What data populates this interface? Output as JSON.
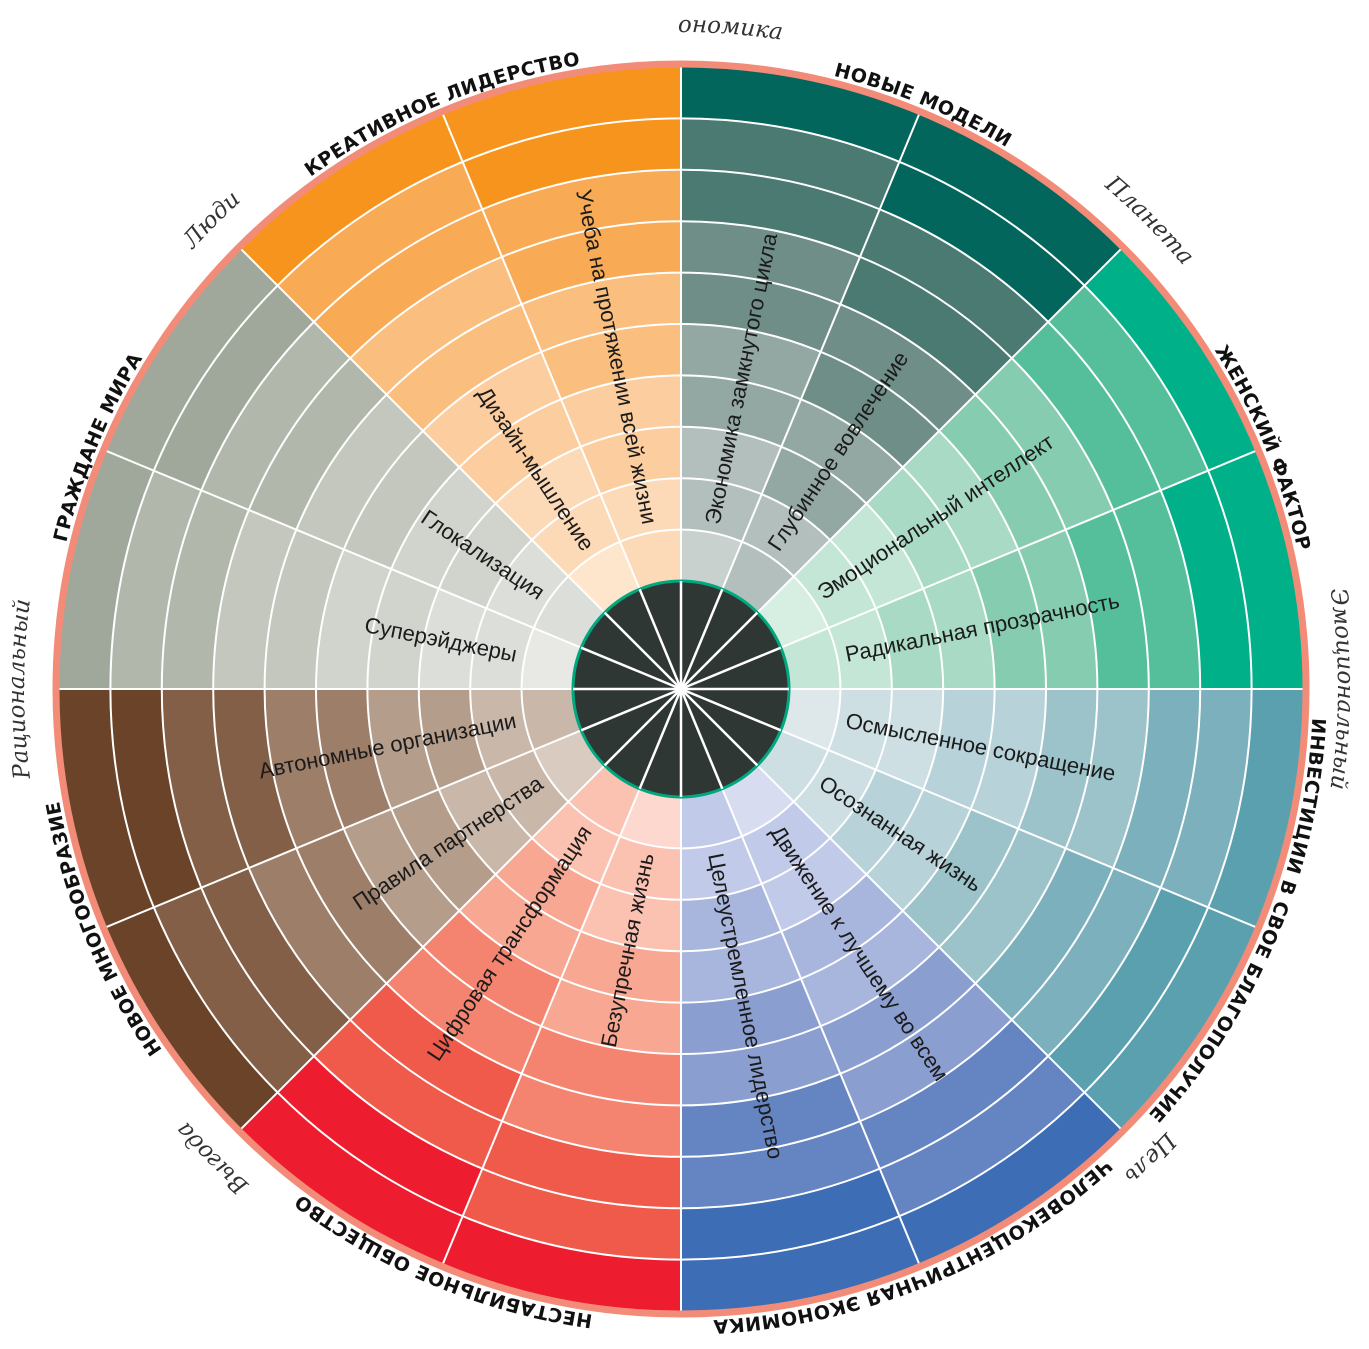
{
  "axis_labels": [
    "Я/мы экономика",
    "Планета",
    "Эмоциональный",
    "Цель",
    "Выгода",
    "Рациональный",
    "Люди"
  ],
  "sectors": [
    {
      "label": "НОВЫЕ МОДЕЛИ",
      "shades": [
        "#03665C",
        "#4A7A72",
        "#6F8E87",
        "#94A8A3",
        "#B2BFBC",
        "#C9D1CF"
      ]
    },
    {
      "label": "ЖЕНСКИЙ ФАКТОР",
      "shades": [
        "#00B089",
        "#55BF9C",
        "#86CCB1",
        "#A9DAC5",
        "#C3E6D6",
        "#D7EEE3"
      ]
    },
    {
      "label": "ИНВЕСТИЦИИ В СВОЕ БЛАГОПОЛУЧИЕ",
      "shades": [
        "#5AA0AE",
        "#7BB0BC",
        "#9CC2CA",
        "#B7D2D8",
        "#CDDFE3",
        "#DEE8EB"
      ]
    },
    {
      "label": "ЧЕЛОВЕКОЦЕНТРИЧНАЯ ЭКОНОМИКА",
      "shades": [
        "#3D6DB5",
        "#6584C2",
        "#8A9ED0",
        "#A8B5DD",
        "#C1CAE8",
        "#D7DCF1"
      ]
    },
    {
      "label": "НЕСТАБИЛЬНОЕ ОБЩЕСТВО",
      "shades": [
        "#ED1C2E",
        "#F05A4B",
        "#F48470",
        "#F8A792",
        "#FBC2B2",
        "#FDD8CE"
      ]
    },
    {
      "label": "НОВОЕ МНОГООБРАЗИЕ",
      "shades": [
        "#6B4329",
        "#835F48",
        "#9C7E69",
        "#B49D8A",
        "#C9B8A9",
        "#D9CBBF"
      ]
    },
    {
      "label": "ГРАЖДАНЕ МИРА",
      "shades": [
        "#A0A89B",
        "#B2B7AC",
        "#C3C7BE",
        "#D1D4CD",
        "#DCDED9",
        "#E8E8E4"
      ]
    },
    {
      "label": "КРЕАТИВНОЕ ЛИДЕРСТВО",
      "shades": [
        "#F7941D",
        "#F8AA55",
        "#FABE7E",
        "#FCCE9F",
        "#FDDAB7",
        "#FEE6CC"
      ]
    }
  ],
  "trends": [
    "Экономика замкнутого цикла",
    "Глубинное вовлечение",
    "Эмоциональный интеллект",
    "Радикальная прозрачность",
    "Осмысленное сокращение",
    "Осознанная жизнь",
    "Движение к лучшему во всем",
    "Целеустремленное лидерство",
    "Безупречная жизнь",
    "Цифровая трансформация",
    "Правила партнерства",
    "Автономные организации",
    "Суперэйджеры",
    "Глокализация",
    "Дизайн-мышление",
    "Учеба на протяжении всей жизни"
  ],
  "colors": {
    "outer_ring": "#F28C78",
    "core": "#2F3735",
    "core_border": "#00A87E",
    "divider": "#FFFFFF"
  }
}
